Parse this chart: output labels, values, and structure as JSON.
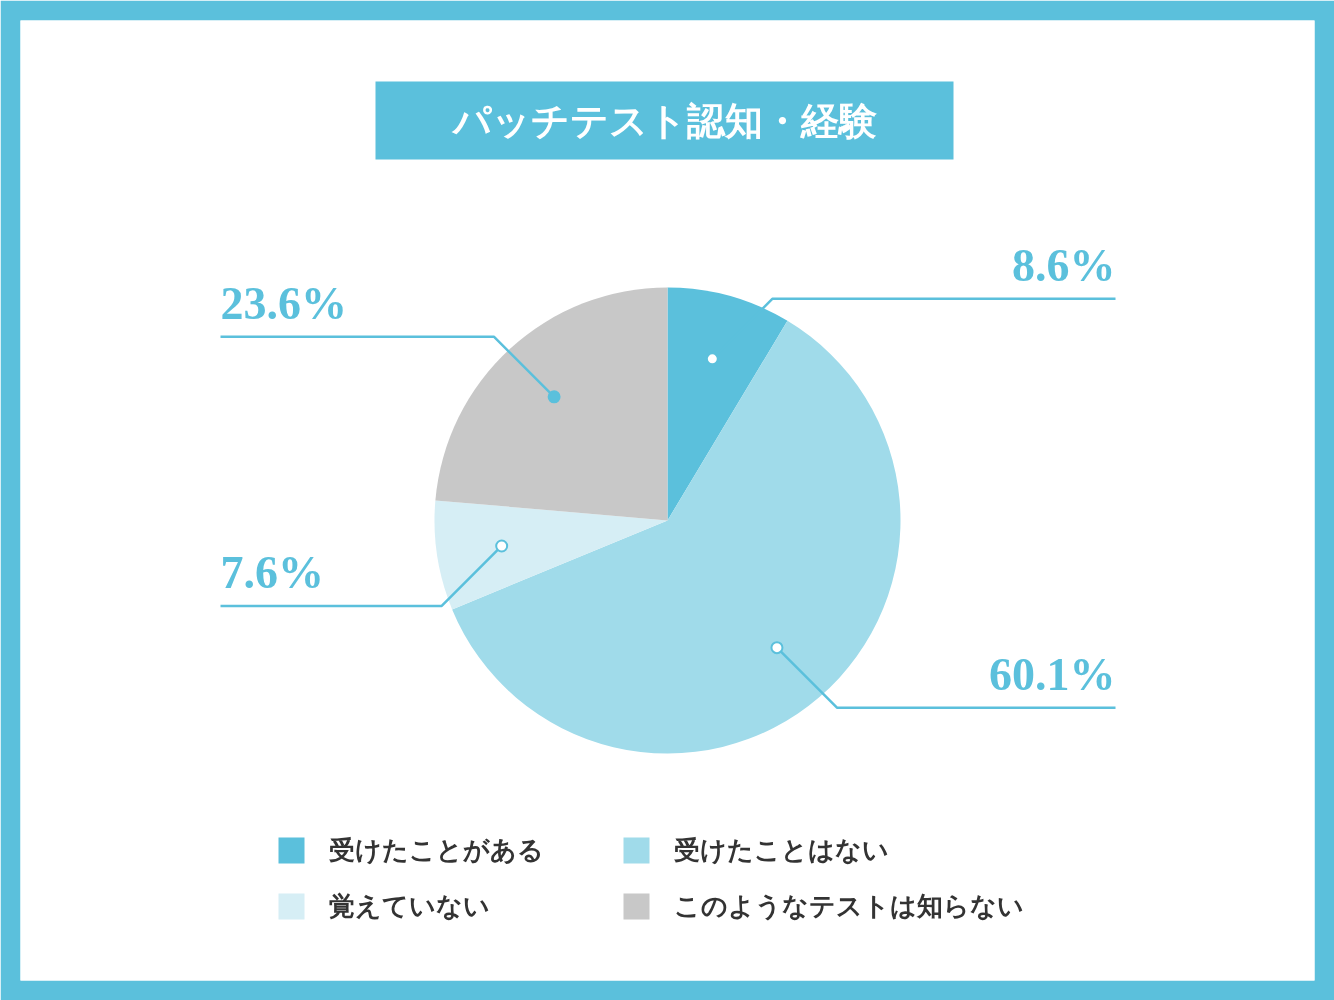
{
  "chart_data": {
    "type": "pie",
    "title": "パッチテスト認知・経験",
    "categories": [
      "受けたことがある",
      "受けたことはない",
      "覚えていない",
      "このようなテストは知らない"
    ],
    "values": [
      8.6,
      60.1,
      7.6,
      23.6
    ],
    "colors": [
      "#5bc0dc",
      "#a0dbea",
      "#d6eef5",
      "#c8c8c8"
    ],
    "value_labels": [
      "8.6%",
      "60.1%",
      "7.6%",
      "23.6%"
    ],
    "legend": "bottom"
  }
}
